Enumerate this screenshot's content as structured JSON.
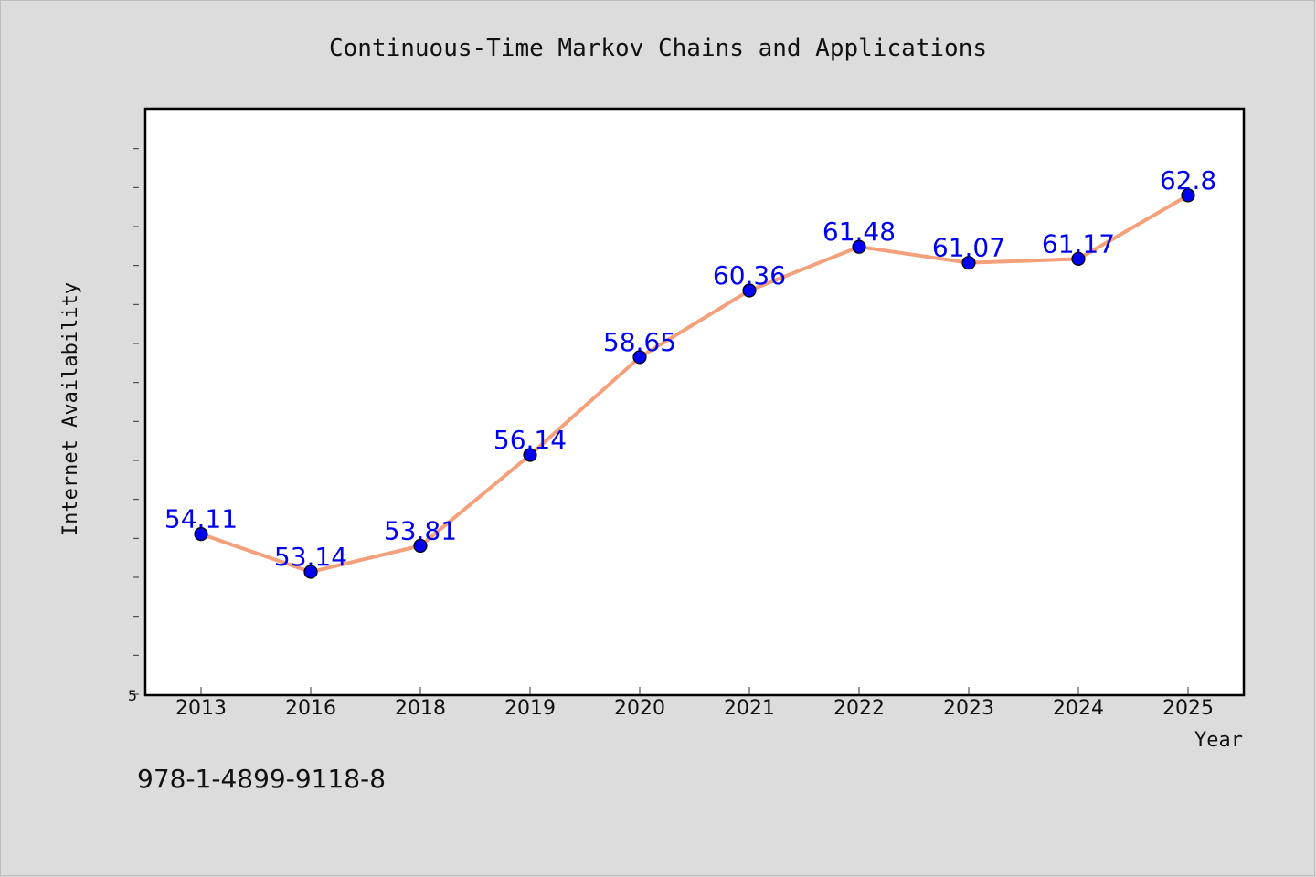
{
  "chart_data": {
    "type": "line",
    "title": "Continuous-Time Markov Chains and Applications",
    "xlabel": "Year",
    "ylabel": "Internet Availability",
    "categories": [
      "2013",
      "2016",
      "2018",
      "2019",
      "2020",
      "2021",
      "2022",
      "2023",
      "2024",
      "2025"
    ],
    "series": [
      {
        "values": [
          54.11,
          53.14,
          53.81,
          56.14,
          58.65,
          60.36,
          61.48,
          61.07,
          61.17,
          62.8
        ]
      }
    ],
    "data_labels": [
      "54.11",
      "53.14",
      "53.81",
      "56.14",
      "58.65",
      "60.36",
      "61.48",
      "61.07",
      "61.17",
      "62.8"
    ],
    "y_tick_label": "5",
    "ylim": [
      50,
      65
    ],
    "grid": false,
    "line_color": "#f4a07a",
    "marker_color": "#0000ee",
    "label_color": "#0000ee"
  },
  "footer": {
    "isbn": "978-1-4899-9118-8"
  }
}
